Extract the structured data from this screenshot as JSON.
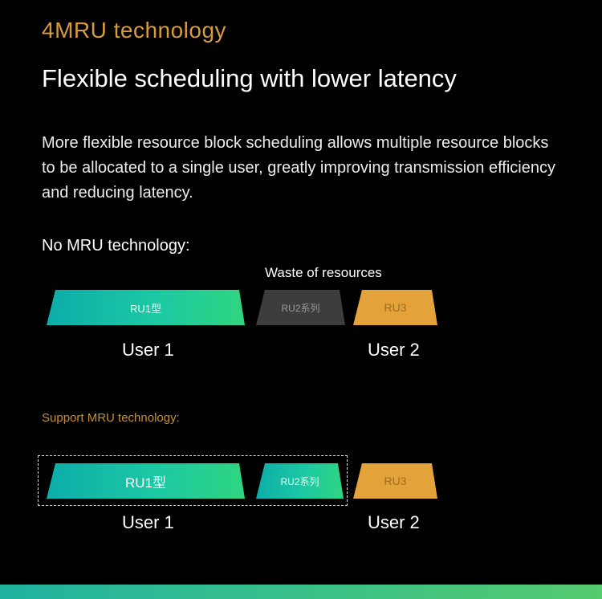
{
  "header": {
    "eyebrow": "4MRU technology",
    "title": "Flexible scheduling with lower latency",
    "paragraph": "More flexible resource block scheduling allows multiple resource blocks to be allocated to a single user, greatly improving transmission efficiency and reducing latency."
  },
  "no_mru": {
    "label": "No MRU technology:",
    "annotation": "Waste of resources",
    "blocks": [
      {
        "label": "RU1型",
        "style": "teal"
      },
      {
        "label": "RU2系列",
        "style": "gray"
      },
      {
        "label": "RU3",
        "style": "orange"
      }
    ],
    "user1": "User 1",
    "user2": "User 2"
  },
  "mru": {
    "label": "Support MRU technology:",
    "blocks": [
      {
        "label": "RU1型",
        "style": "teal"
      },
      {
        "label": "RU2系列",
        "style": "teal"
      },
      {
        "label": "RU3",
        "style": "orange"
      }
    ],
    "user1": "User 1",
    "user2": "User 2"
  },
  "colors": {
    "background": "#000000",
    "accent_orange": "#d89b3c",
    "teal_gradient_start": "#0caca9",
    "teal_gradient_end": "#30d57f",
    "orange_block": "#e3a23a",
    "gray_block": "#3d3d3d",
    "bottom_bar_start": "#20b2a0",
    "bottom_bar_end": "#55ca6e"
  }
}
